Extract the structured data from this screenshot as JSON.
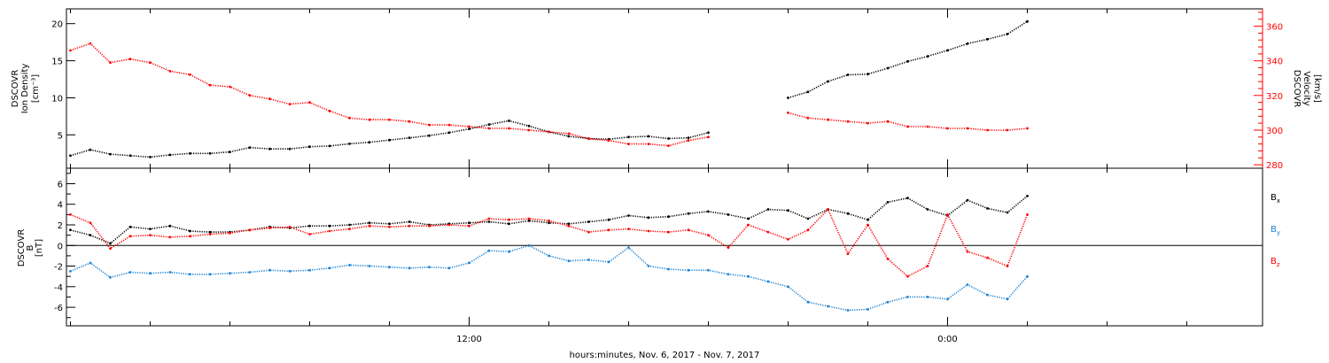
{
  "xlabel": "hours:minutes, Nov.  6, 2017 - Nov.  7, 2017",
  "x_ticks": [
    "12:00",
    "0:00"
  ],
  "chart_data": [
    {
      "type": "scatter",
      "panel": "plasma",
      "x_unit": "hours since 2017-11-06 00:00",
      "xlim": [
        1.9,
        31.9
      ],
      "grid": false,
      "ylabel_left": [
        "DSCOVR",
        "Ion Density",
        "[cm⁻³]"
      ],
      "ylabel_right": [
        "DSCOVR",
        "Velocity",
        "[km/s]"
      ],
      "ylim_left": [
        0.5,
        22
      ],
      "yticks_left": [
        "5",
        "10",
        "15",
        "20"
      ],
      "ytick_values_left": [
        5,
        10,
        15,
        20
      ],
      "ylim_right": [
        278,
        370
      ],
      "yticks_right": [
        "280",
        "300",
        "320",
        "340",
        "360"
      ],
      "ytick_values_right": [
        280,
        300,
        320,
        340,
        360
      ],
      "series": [
        {
          "name": "Ion Density",
          "axis": "left",
          "color": "#000000",
          "x": [
            2.0,
            2.5,
            3.0,
            3.5,
            4.0,
            4.5,
            5.0,
            5.5,
            6.0,
            6.5,
            7.0,
            7.5,
            8.0,
            8.5,
            9.0,
            9.5,
            10.0,
            10.5,
            11.0,
            11.5,
            12.0,
            12.5,
            13.0,
            13.5,
            14.0,
            14.5,
            15.0,
            15.5,
            16.0,
            16.5,
            17.0,
            17.5,
            18.0,
            18.5,
            19.0,
            19.5,
            20.0,
            20.5,
            21.0,
            21.5,
            22.0,
            22.5,
            23.0,
            23.5,
            24.0,
            24.5,
            25.0,
            25.5,
            26.0
          ],
          "y": [
            2.2,
            3.0,
            2.4,
            2.2,
            2.0,
            2.3,
            2.5,
            2.5,
            2.7,
            3.3,
            3.1,
            3.1,
            3.4,
            3.5,
            3.8,
            4.0,
            4.3,
            4.6,
            4.9,
            5.3,
            5.8,
            6.4,
            6.9,
            6.2,
            5.4,
            4.8,
            4.5,
            4.4,
            4.7,
            4.8,
            4.5,
            4.6,
            5.3,
            null,
            null,
            null,
            10.0,
            10.8,
            12.2,
            13.1,
            13.2,
            14.0,
            14.9,
            15.6,
            16.4,
            17.3,
            17.9,
            18.6,
            20.3
          ]
        },
        {
          "name": "Velocity",
          "axis": "right",
          "color": "#ff0000",
          "x": [
            2.0,
            2.5,
            3.0,
            3.5,
            4.0,
            4.5,
            5.0,
            5.5,
            6.0,
            6.5,
            7.0,
            7.5,
            8.0,
            8.5,
            9.0,
            9.5,
            10.0,
            10.5,
            11.0,
            11.5,
            12.0,
            12.5,
            13.0,
            13.5,
            14.0,
            14.5,
            15.0,
            15.5,
            16.0,
            16.5,
            17.0,
            17.5,
            18.0,
            18.5,
            19.0,
            19.5,
            20.0,
            20.5,
            21.0,
            21.5,
            22.0,
            22.5,
            23.0,
            23.5,
            24.0,
            24.5,
            25.0,
            25.5,
            26.0
          ],
          "y": [
            346,
            350,
            339,
            341,
            339,
            334,
            332,
            326,
            325,
            320,
            318,
            315,
            316,
            311,
            307,
            306,
            306,
            305,
            303,
            303,
            302,
            301,
            301,
            300,
            299,
            298,
            295,
            294,
            292,
            292,
            291,
            294,
            296,
            null,
            null,
            null,
            310,
            307,
            306,
            305,
            304,
            305,
            302,
            302,
            301,
            301,
            300,
            300,
            301
          ]
        }
      ]
    },
    {
      "type": "scatter",
      "panel": "magnetic field",
      "x_unit": "hours since 2017-11-06 00:00",
      "xlim": [
        1.9,
        31.9
      ],
      "grid": false,
      "zero_line": true,
      "ylabel_left": [
        "DSCOVR",
        "B",
        "[nT]"
      ],
      "ylim": [
        -7.8,
        7.5
      ],
      "yticks": [
        "-6",
        "-4",
        "-2",
        "0",
        "2",
        "4",
        "6"
      ],
      "ytick_values": [
        -6,
        -4,
        -2,
        0,
        2,
        4,
        6
      ],
      "legend_placement": "right",
      "series": [
        {
          "name": "B",
          "subscript": "x",
          "color": "#000000",
          "x": [
            2.0,
            2.5,
            3.0,
            3.5,
            4.0,
            4.5,
            5.0,
            5.5,
            6.0,
            6.5,
            7.0,
            7.5,
            8.0,
            8.5,
            9.0,
            9.5,
            10.0,
            10.5,
            11.0,
            11.5,
            12.0,
            12.5,
            13.0,
            13.5,
            14.0,
            14.5,
            15.0,
            15.5,
            16.0,
            16.5,
            17.0,
            17.5,
            18.0,
            18.5,
            19.0,
            19.5,
            20.0,
            20.5,
            21.0,
            21.5,
            22.0,
            22.5,
            23.0,
            23.5,
            24.0,
            24.5,
            25.0,
            25.5,
            26.0
          ],
          "y": [
            1.5,
            1.0,
            0.2,
            1.8,
            1.6,
            1.9,
            1.4,
            1.3,
            1.3,
            1.5,
            1.8,
            1.7,
            1.9,
            1.9,
            2.0,
            2.2,
            2.1,
            2.3,
            2.0,
            2.1,
            2.2,
            2.3,
            2.1,
            2.4,
            2.2,
            2.1,
            2.3,
            2.5,
            2.9,
            2.7,
            2.8,
            3.1,
            3.3,
            3.0,
            2.6,
            3.5,
            3.4,
            2.6,
            3.5,
            3.1,
            2.5,
            4.2,
            4.6,
            3.5,
            2.9,
            4.4,
            3.6,
            3.2,
            4.8
          ]
        },
        {
          "name": "B",
          "subscript": "y",
          "color": "#1e82d2",
          "x": [
            2.0,
            2.5,
            3.0,
            3.5,
            4.0,
            4.5,
            5.0,
            5.5,
            6.0,
            6.5,
            7.0,
            7.5,
            8.0,
            8.5,
            9.0,
            9.5,
            10.0,
            10.5,
            11.0,
            11.5,
            12.0,
            12.5,
            13.0,
            13.5,
            14.0,
            14.5,
            15.0,
            15.5,
            16.0,
            16.5,
            17.0,
            17.5,
            18.0,
            18.5,
            19.0,
            19.5,
            20.0,
            20.5,
            21.0,
            21.5,
            22.0,
            22.5,
            23.0,
            23.5,
            24.0,
            24.5,
            25.0,
            25.5,
            26.0
          ],
          "y": [
            -2.5,
            -1.7,
            -3.1,
            -2.6,
            -2.7,
            -2.6,
            -2.8,
            -2.8,
            -2.7,
            -2.6,
            -2.4,
            -2.5,
            -2.4,
            -2.2,
            -1.9,
            -2.0,
            -2.1,
            -2.2,
            -2.1,
            -2.2,
            -1.7,
            -0.5,
            -0.6,
            0.0,
            -1.0,
            -1.5,
            -1.4,
            -1.6,
            -0.2,
            -2.0,
            -2.3,
            -2.4,
            -2.4,
            -2.8,
            -3.0,
            -3.5,
            -4.0,
            -5.5,
            -5.9,
            -6.3,
            -6.2,
            -5.5,
            -5.0,
            -5.0,
            -5.2,
            -3.8,
            -4.8,
            -5.2,
            -3.0
          ]
        },
        {
          "name": "B",
          "subscript": "z",
          "color": "#ff0000",
          "x": [
            2.0,
            2.5,
            3.0,
            3.5,
            4.0,
            4.5,
            5.0,
            5.5,
            6.0,
            6.5,
            7.0,
            7.5,
            8.0,
            8.5,
            9.0,
            9.5,
            10.0,
            10.5,
            11.0,
            11.5,
            12.0,
            12.5,
            13.0,
            13.5,
            14.0,
            14.5,
            15.0,
            15.5,
            16.0,
            16.5,
            17.0,
            17.5,
            18.0,
            18.5,
            19.0,
            19.5,
            20.0,
            20.5,
            21.0,
            21.5,
            22.0,
            22.5,
            23.0,
            23.5,
            24.0,
            24.5,
            25.0,
            25.5,
            26.0
          ],
          "y": [
            3.0,
            2.2,
            -0.3,
            0.9,
            1.0,
            0.8,
            0.9,
            1.1,
            1.2,
            1.5,
            1.7,
            1.8,
            1.1,
            1.4,
            1.6,
            1.9,
            1.8,
            1.9,
            1.9,
            2.0,
            1.9,
            2.6,
            2.5,
            2.6,
            2.4,
            1.9,
            1.3,
            1.5,
            1.6,
            1.4,
            1.3,
            1.5,
            1.0,
            -0.2,
            2.0,
            1.3,
            0.6,
            1.5,
            3.5,
            -0.8,
            2.0,
            -1.3,
            -3.0,
            -2.0,
            3.0,
            -0.6,
            -1.2,
            -2.0,
            3.0
          ]
        }
      ]
    }
  ]
}
